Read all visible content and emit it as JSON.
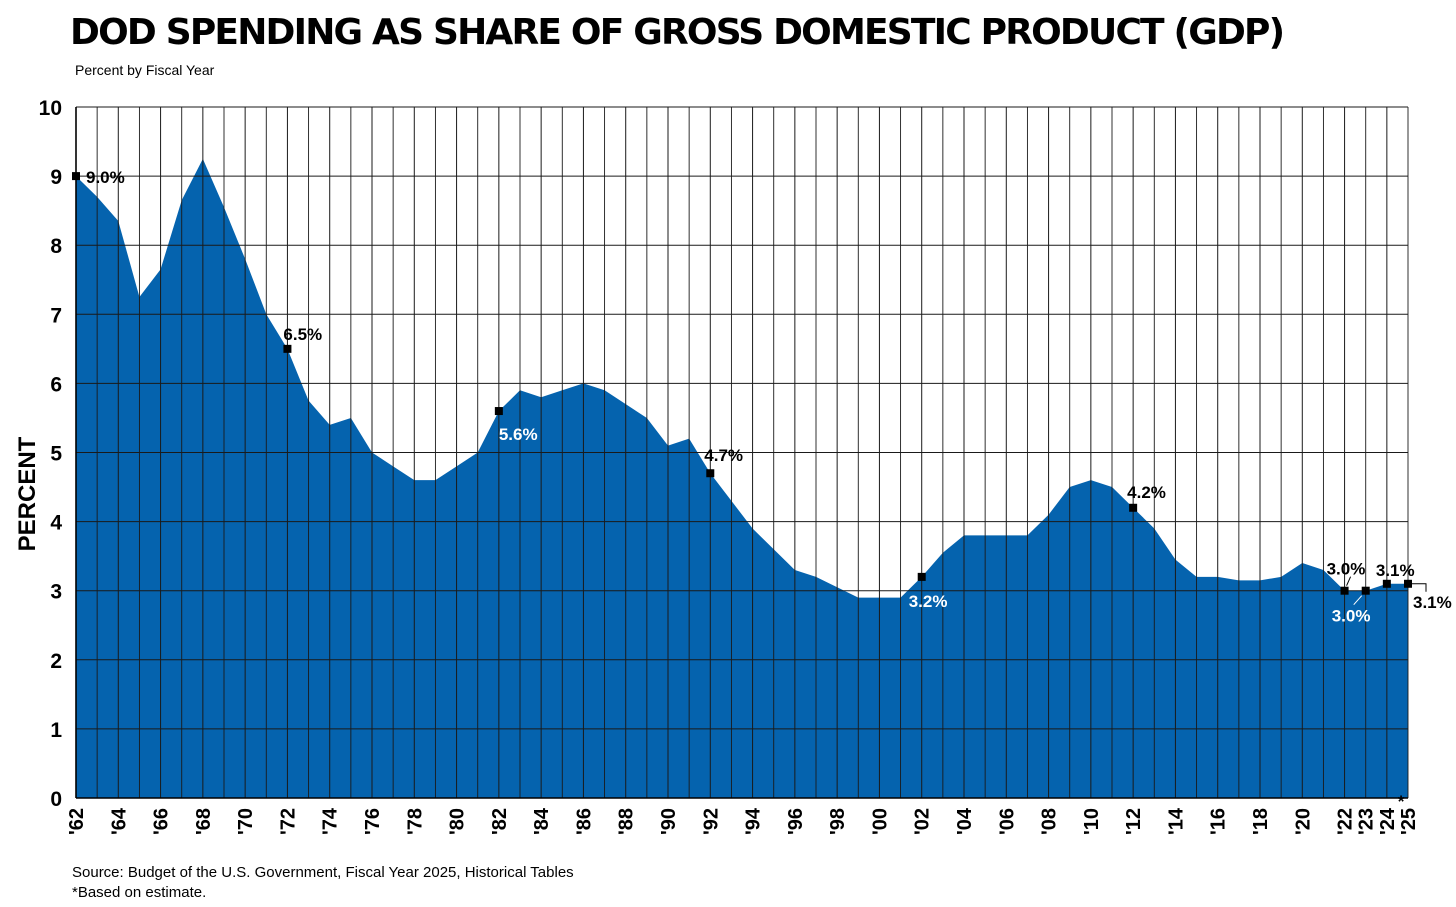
{
  "chart_data": {
    "type": "area",
    "title": "DOD SPENDING AS SHARE OF GROSS DOMESTIC PRODUCT (GDP)",
    "subtitle": "Percent by Fiscal Year",
    "ylabel": "PERCENT",
    "xlabel": "",
    "ylim": [
      0,
      10
    ],
    "yticks": [
      "0",
      "1",
      "2",
      "3",
      "4",
      "5",
      "6",
      "7",
      "8",
      "9",
      "10"
    ],
    "x_start_year": 1962,
    "xtick_labels": [
      "'62",
      "'64",
      "'66",
      "'68",
      "'70",
      "'72",
      "'74",
      "'76",
      "'78",
      "'80",
      "'82",
      "'84",
      "'86",
      "'88",
      "'90",
      "'92",
      "'94",
      "'96",
      "'98",
      "'00",
      "'02",
      "'04",
      "'06",
      "'08",
      "'10",
      "'12",
      "'14",
      "'16",
      "'18",
      "'20",
      "'22",
      "'23",
      "'24",
      "'25"
    ],
    "xtick_years": [
      1962,
      1964,
      1966,
      1968,
      1970,
      1972,
      1974,
      1976,
      1978,
      1980,
      1982,
      1984,
      1986,
      1988,
      1990,
      1992,
      1994,
      1996,
      1998,
      2000,
      2002,
      2004,
      2006,
      2008,
      2010,
      2012,
      2014,
      2016,
      2018,
      2020,
      2022,
      2023,
      2024,
      2025
    ],
    "years": [
      1962,
      1963,
      1964,
      1965,
      1966,
      1967,
      1968,
      1969,
      1970,
      1971,
      1972,
      1973,
      1974,
      1975,
      1976,
      1977,
      1978,
      1979,
      1980,
      1981,
      1982,
      1983,
      1984,
      1985,
      1986,
      1987,
      1988,
      1989,
      1990,
      1991,
      1992,
      1993,
      1994,
      1995,
      1996,
      1997,
      1998,
      1999,
      2000,
      2001,
      2002,
      2003,
      2004,
      2005,
      2006,
      2007,
      2008,
      2009,
      2010,
      2011,
      2012,
      2013,
      2014,
      2015,
      2016,
      2017,
      2018,
      2019,
      2020,
      2021,
      2022,
      2023,
      2024,
      2025
    ],
    "values": [
      9.0,
      8.7,
      8.35,
      7.25,
      7.65,
      8.65,
      9.25,
      8.55,
      7.8,
      7.0,
      6.5,
      5.75,
      5.4,
      5.5,
      5.0,
      4.8,
      4.6,
      4.6,
      4.8,
      5.0,
      5.6,
      5.9,
      5.8,
      5.9,
      6.0,
      5.9,
      5.7,
      5.5,
      5.1,
      5.2,
      4.7,
      4.3,
      3.9,
      3.6,
      3.3,
      3.2,
      3.05,
      2.9,
      2.9,
      2.9,
      3.2,
      3.55,
      3.8,
      3.8,
      3.8,
      3.8,
      4.1,
      4.5,
      4.6,
      4.5,
      4.2,
      3.9,
      3.45,
      3.2,
      3.2,
      3.15,
      3.15,
      3.2,
      3.4,
      3.3,
      3.0,
      3.0,
      3.1,
      3.1
    ],
    "annotations": [
      {
        "year": 1962,
        "value": 9.0,
        "label": "9.0%",
        "style": "dark"
      },
      {
        "year": 1972,
        "value": 6.5,
        "label": "6.5%",
        "style": "dark"
      },
      {
        "year": 1982,
        "value": 5.6,
        "label": "5.6%",
        "style": "light"
      },
      {
        "year": 1992,
        "value": 4.7,
        "label": "4.7%",
        "style": "dark"
      },
      {
        "year": 2002,
        "value": 3.2,
        "label": "3.2%",
        "style": "light"
      },
      {
        "year": 2012,
        "value": 4.2,
        "label": "4.2%",
        "style": "dark"
      },
      {
        "year": 2022,
        "value": 3.0,
        "label": "3.0%",
        "style": "dark"
      },
      {
        "year": 2023,
        "value": 3.0,
        "label": "3.0%",
        "style": "light"
      },
      {
        "year": 2024,
        "value": 3.1,
        "label": "3.1%",
        "style": "dark"
      },
      {
        "year": 2025,
        "value": 3.1,
        "label": "3.1%",
        "style": "dark"
      }
    ],
    "grid": true,
    "fill_color": "#0563AE",
    "grid_color": "#1a1a1a"
  },
  "footer": {
    "source": "Source: Budget of the U.S. Government, Fiscal Year 2025, Historical Tables",
    "note": "*Based on estimate.",
    "asterisk": "*"
  }
}
